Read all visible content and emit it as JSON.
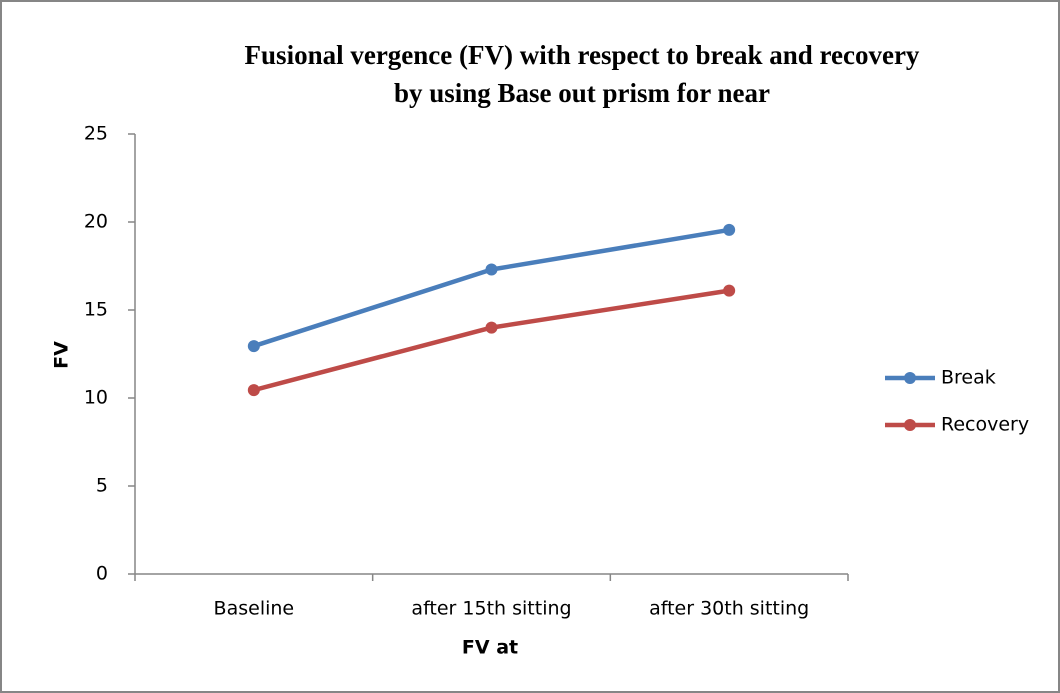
{
  "chart_data": {
    "type": "line",
    "title": [
      "Fusional vergence (FV) with respect to break and recovery",
      "by using Base out prism for near"
    ],
    "x_label": "FV at",
    "y_label": "FV",
    "categories": [
      "Baseline",
      "after 15th sitting",
      "after 30th sitting"
    ],
    "series": [
      {
        "name": "Break",
        "color": "#4a7ebb",
        "values": [
          12.95,
          17.3,
          19.55
        ]
      },
      {
        "name": "Recovery",
        "color": "#be4b48",
        "values": [
          10.45,
          14.0,
          16.1
        ]
      }
    ],
    "ylim": [
      0,
      25
    ],
    "yticks": [
      0,
      5,
      10,
      15,
      20,
      25
    ],
    "grid": false,
    "legend": "right"
  }
}
